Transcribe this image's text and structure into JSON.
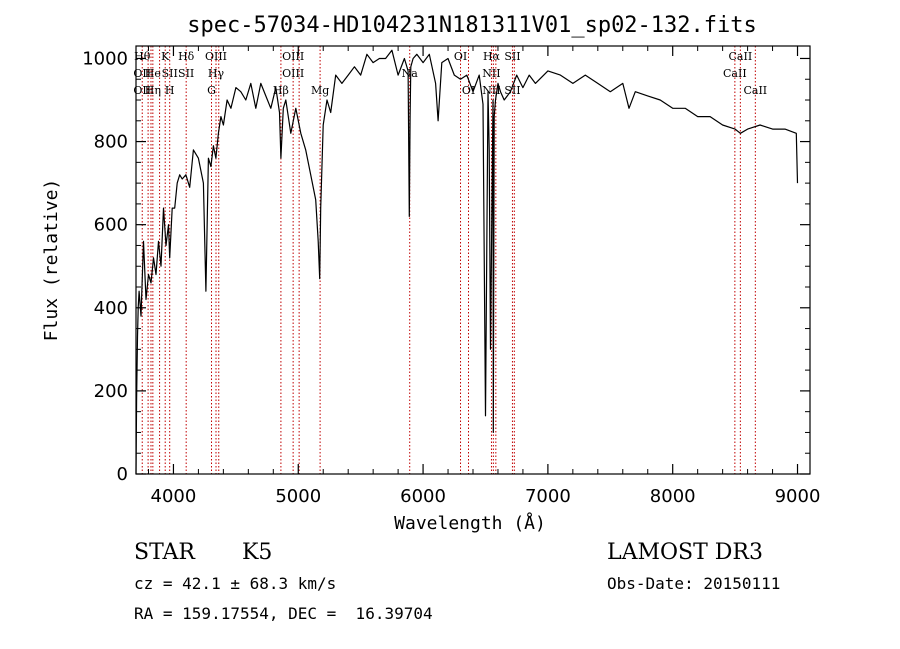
{
  "chart_data": {
    "type": "line",
    "title": "spec-57034-HD104231N181311V01_sp02-132.fits",
    "xlabel": "Wavelength (Å)",
    "ylabel": "Flux (relative)",
    "xlim": [
      3700,
      9100
    ],
    "ylim": [
      0,
      1030
    ],
    "xticks": [
      4000,
      5000,
      6000,
      7000,
      8000,
      9000
    ],
    "yticks": [
      0,
      200,
      400,
      600,
      800,
      1000
    ],
    "grid": false,
    "series": [
      {
        "name": "flux",
        "x": [
          3700,
          3705,
          3712,
          3718,
          3725,
          3740,
          3760,
          3780,
          3800,
          3820,
          3840,
          3860,
          3880,
          3900,
          3920,
          3940,
          3960,
          3970,
          3990,
          4010,
          4030,
          4050,
          4070,
          4100,
          4130,
          4160,
          4200,
          4240,
          4260,
          4280,
          4300,
          4320,
          4340,
          4360,
          4380,
          4400,
          4430,
          4460,
          4500,
          4540,
          4580,
          4620,
          4660,
          4700,
          4740,
          4780,
          4820,
          4850,
          4861,
          4880,
          4900,
          4940,
          4980,
          5020,
          5060,
          5100,
          5140,
          5160,
          5172,
          5180,
          5200,
          5230,
          5260,
          5300,
          5350,
          5400,
          5450,
          5500,
          5550,
          5600,
          5650,
          5700,
          5750,
          5800,
          5850,
          5880,
          5890,
          5896,
          5902,
          5920,
          5950,
          6000,
          6050,
          6100,
          6120,
          6150,
          6200,
          6250,
          6300,
          6350,
          6400,
          6450,
          6480,
          6500,
          6520,
          6530,
          6540,
          6560,
          6563,
          6570,
          6580,
          6600,
          6620,
          6650,
          6700,
          6750,
          6800,
          6850,
          6900,
          7000,
          7100,
          7200,
          7300,
          7400,
          7500,
          7600,
          7650,
          7700,
          7800,
          7900,
          8000,
          8100,
          8200,
          8300,
          8400,
          8500,
          8542,
          8600,
          8700,
          8800,
          8900,
          8990,
          9000
        ],
        "y": [
          0,
          180,
          330,
          400,
          440,
          380,
          560,
          420,
          480,
          460,
          520,
          480,
          560,
          500,
          640,
          550,
          600,
          520,
          640,
          640,
          700,
          720,
          710,
          720,
          690,
          780,
          760,
          700,
          440,
          760,
          740,
          790,
          760,
          820,
          860,
          840,
          900,
          880,
          930,
          920,
          900,
          940,
          880,
          940,
          910,
          880,
          930,
          870,
          760,
          880,
          900,
          820,
          880,
          820,
          780,
          720,
          660,
          560,
          470,
          640,
          840,
          900,
          870,
          960,
          940,
          960,
          980,
          960,
          1010,
          990,
          1000,
          1000,
          1020,
          960,
          1000,
          970,
          620,
          860,
          980,
          1000,
          1010,
          990,
          1010,
          940,
          850,
          990,
          1000,
          960,
          950,
          960,
          920,
          960,
          890,
          140,
          920,
          780,
          300,
          900,
          100,
          860,
          900,
          940,
          920,
          900,
          920,
          960,
          930,
          960,
          940,
          970,
          960,
          940,
          960,
          940,
          920,
          940,
          880,
          920,
          910,
          900,
          880,
          880,
          860,
          860,
          840,
          830,
          820,
          830,
          840,
          830,
          830,
          820,
          700
        ]
      }
    ],
    "line_markers": [
      {
        "wavelength": 3750,
        "labels": [
          "Hθ",
          "OII",
          "OII"
        ]
      },
      {
        "wavelength": 3797
      },
      {
        "wavelength": 3820
      },
      {
        "wavelength": 3835,
        "labels": [
          "",
          "He",
          "Hη"
        ]
      },
      {
        "wavelength": 3889
      },
      {
        "wavelength": 3934,
        "labels": [
          "K",
          "",
          ""
        ]
      },
      {
        "wavelength": 3970,
        "labels": [
          "",
          "SII",
          "H"
        ]
      },
      {
        "wavelength": 4102,
        "labels": [
          "Hδ",
          "SII",
          ""
        ]
      },
      {
        "wavelength": 4305,
        "labels": [
          "",
          "",
          "G"
        ]
      },
      {
        "wavelength": 4341,
        "labels": [
          "OIII",
          "Hγ",
          ""
        ]
      },
      {
        "wavelength": 4363
      },
      {
        "wavelength": 4861,
        "labels": [
          "",
          "",
          "Hβ"
        ]
      },
      {
        "wavelength": 4959,
        "labels": [
          "OIII",
          "OIII",
          ""
        ]
      },
      {
        "wavelength": 5007
      },
      {
        "wavelength": 5175,
        "labels": [
          "",
          "",
          "Mg"
        ]
      },
      {
        "wavelength": 5893,
        "labels": [
          "",
          "Na",
          ""
        ]
      },
      {
        "wavelength": 6300,
        "labels": [
          "OI",
          "",
          ""
        ]
      },
      {
        "wavelength": 6364,
        "labels": [
          "",
          "",
          "OI"
        ]
      },
      {
        "wavelength": 6548,
        "labels": [
          "Hα",
          "NII",
          "NII"
        ]
      },
      {
        "wavelength": 6563
      },
      {
        "wavelength": 6583,
        "labels": [
          "",
          "",
          ""
        ]
      },
      {
        "wavelength": 6716,
        "labels": [
          "SII",
          "",
          "SII"
        ]
      },
      {
        "wavelength": 6731
      },
      {
        "wavelength": 8498,
        "labels": [
          "",
          "CaII",
          ""
        ]
      },
      {
        "wavelength": 8542,
        "labels": [
          "CaII",
          "",
          ""
        ]
      },
      {
        "wavelength": 8662,
        "labels": [
          "",
          "",
          "CaII"
        ]
      }
    ]
  },
  "info": {
    "class": "STAR",
    "subclass": "K5",
    "survey": "LAMOST DR3",
    "cz": "cz = 42.1 ± 68.3 km/s",
    "obs_date": "Obs-Date: 20150111",
    "coords": "RA = 159.17554, DEC =  16.39704"
  },
  "colors": {
    "spectrum": "#000000",
    "marker": "#c00000",
    "axis": "#000000",
    "background": "#ffffff"
  }
}
